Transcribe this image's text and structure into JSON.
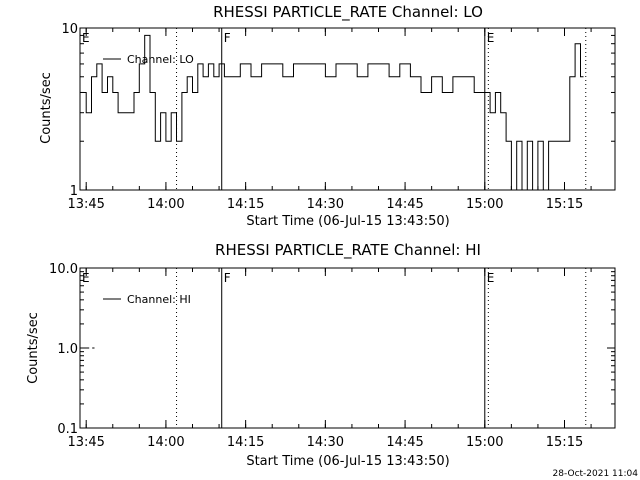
{
  "chart_data": [
    {
      "type": "line",
      "title": "RHESSI PARTICLE_RATE Channel: LO",
      "xlabel": "Start Time (06-Jul-15 13:43:50)",
      "ylabel": "Counts/sec",
      "yscale": "log",
      "ylim": [
        1,
        10
      ],
      "xlim": [
        "13:43:50",
        "15:24:30"
      ],
      "xticks": [
        "13:45",
        "14:00",
        "14:15",
        "14:30",
        "14:45",
        "15:00",
        "15:15"
      ],
      "yticks": [
        "1",
        "10"
      ],
      "legend": {
        "position": "top-left",
        "entries": [
          "Channel: LO"
        ]
      },
      "grid": false,
      "events": [
        {
          "label": "E",
          "time": "13:43:50",
          "style": "solid"
        },
        {
          "label": "",
          "time": "14:02:00",
          "style": "dotted"
        },
        {
          "label": "F",
          "time": "14:10:30",
          "style": "solid"
        },
        {
          "label": "E",
          "time": "15:00:00",
          "style": "solid"
        },
        {
          "label": "",
          "time": "15:00:40",
          "style": "dotted"
        },
        {
          "label": "",
          "time": "15:19:00",
          "style": "dotted"
        }
      ],
      "series": [
        {
          "name": "Channel: LO",
          "times": [
            "13:44:00",
            "13:45:00",
            "13:46:00",
            "13:47:00",
            "13:48:00",
            "13:49:00",
            "13:50:00",
            "13:51:00",
            "13:52:00",
            "13:53:00",
            "13:54:00",
            "13:55:00",
            "13:56:00",
            "13:57:00",
            "13:58:00",
            "13:59:00",
            "14:00:00",
            "14:01:00",
            "14:02:00",
            "14:03:00",
            "14:04:00",
            "14:05:00",
            "14:06:00",
            "14:07:00",
            "14:08:00",
            "14:09:00",
            "14:10:00",
            "14:11:00",
            "14:12:00",
            "14:14:00",
            "14:16:00",
            "14:18:00",
            "14:20:00",
            "14:22:00",
            "14:24:00",
            "14:26:00",
            "14:28:00",
            "14:30:00",
            "14:32:00",
            "14:34:00",
            "14:36:00",
            "14:38:00",
            "14:40:00",
            "14:42:00",
            "14:44:00",
            "14:46:00",
            "14:48:00",
            "14:50:00",
            "14:52:00",
            "14:54:00",
            "14:56:00",
            "14:58:00",
            "15:00:00",
            "15:01:00",
            "15:02:00",
            "15:03:00",
            "15:04:00",
            "15:05:00",
            "15:06:00",
            "15:07:00",
            "15:08:00",
            "15:09:00",
            "15:10:00",
            "15:11:00",
            "15:12:00",
            "15:13:00",
            "15:14:00",
            "15:15:00",
            "15:16:00",
            "15:17:00",
            "15:18:00"
          ],
          "values": [
            4,
            3,
            5,
            6,
            4,
            5,
            4,
            3,
            3,
            3,
            4,
            6,
            9,
            4,
            2,
            3,
            2,
            3,
            2,
            4,
            5,
            4,
            6,
            5,
            6,
            5,
            6,
            5,
            5,
            6,
            5,
            6,
            6,
            5,
            6,
            6,
            6,
            5,
            6,
            6,
            5,
            6,
            6,
            5,
            6,
            5,
            4,
            5,
            4,
            5,
            5,
            4,
            4,
            3,
            4,
            3,
            2,
            1,
            2,
            1,
            2,
            1,
            2,
            1,
            2,
            2,
            2,
            2,
            5,
            8,
            5
          ]
        }
      ]
    },
    {
      "type": "line",
      "title": "RHESSI PARTICLE_RATE Channel: HI",
      "xlabel": "Start Time (06-Jul-15 13:43:50)",
      "ylabel": "Counts/sec",
      "yscale": "log",
      "ylim": [
        0.1,
        10
      ],
      "xlim": [
        "13:43:50",
        "15:24:30"
      ],
      "xticks": [
        "13:45",
        "14:00",
        "14:15",
        "14:30",
        "14:45",
        "15:00",
        "15:15"
      ],
      "yticks": [
        "0.1",
        "1.0",
        "10.0"
      ],
      "legend": {
        "position": "top-left",
        "entries": [
          "Channel: HI"
        ]
      },
      "grid": false,
      "events": [
        {
          "label": "E",
          "time": "13:43:50",
          "style": "solid"
        },
        {
          "label": "",
          "time": "14:02:00",
          "style": "dotted"
        },
        {
          "label": "F",
          "time": "14:10:30",
          "style": "solid"
        },
        {
          "label": "E",
          "time": "15:00:00",
          "style": "solid"
        },
        {
          "label": "",
          "time": "15:00:40",
          "style": "dotted"
        },
        {
          "label": "",
          "time": "15:19:00",
          "style": "dotted"
        }
      ],
      "series": [
        {
          "name": "Channel: HI",
          "times": [
            "13:45:00",
            "13:46:00"
          ],
          "values": [
            1.0,
            1.0
          ],
          "style": "dashed"
        }
      ]
    }
  ],
  "footer": {
    "timestamp": "28-Oct-2021 11:04"
  }
}
